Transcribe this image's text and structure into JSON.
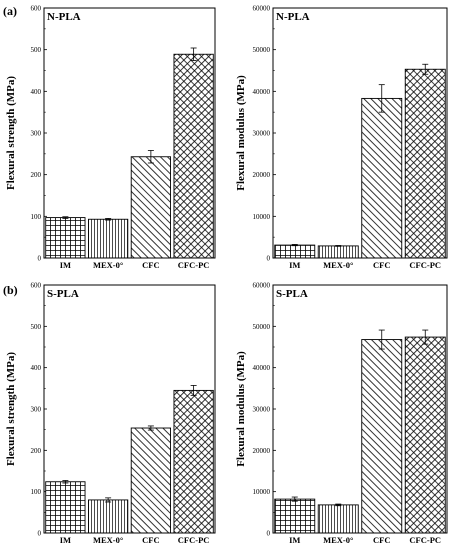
{
  "row_labels": [
    "(a)",
    "(b)"
  ],
  "chart_data": [
    {
      "type": "bar",
      "title": "N-PLA",
      "ylabel": "Flexural strength (MPa)",
      "categories": [
        "IM",
        "MEX-0°",
        "CFC",
        "CFC-PC"
      ],
      "values": [
        97,
        93,
        243,
        489
      ],
      "errors": [
        2,
        2,
        15,
        15
      ],
      "patterns": [
        "grid",
        "vertical",
        "diagonal",
        "crosshatch"
      ],
      "ylim": [
        0,
        600
      ],
      "yticks": [
        0,
        100,
        200,
        300,
        400,
        500,
        600
      ]
    },
    {
      "type": "bar",
      "title": "N-PLA",
      "ylabel": "Flexural modulus (MPa)",
      "categories": [
        "IM",
        "MEX-0°",
        "CFC",
        "CFC-PC"
      ],
      "values": [
        3100,
        2900,
        38300,
        45300
      ],
      "errors": [
        150,
        100,
        3300,
        1200
      ],
      "patterns": [
        "grid",
        "vertical",
        "diagonal",
        "crosshatch"
      ],
      "ylim": [
        0,
        60000
      ],
      "yticks": [
        0,
        10000,
        20000,
        30000,
        40000,
        50000,
        60000
      ]
    },
    {
      "type": "bar",
      "title": "S-PLA",
      "ylabel": "Flexural strength (MPa)",
      "categories": [
        "IM",
        "MEX-0°",
        "CFC",
        "CFC-PC"
      ],
      "values": [
        124,
        80,
        254,
        345
      ],
      "errors": [
        3,
        5,
        5,
        12
      ],
      "patterns": [
        "grid",
        "vertical",
        "diagonal",
        "crosshatch"
      ],
      "ylim": [
        0,
        600
      ],
      "yticks": [
        0,
        100,
        200,
        300,
        400,
        500,
        600
      ]
    },
    {
      "type": "bar",
      "title": "S-PLA",
      "ylabel": "Flexural modulus (MPa)",
      "categories": [
        "IM",
        "MEX-0°",
        "CFC",
        "CFC-PC"
      ],
      "values": [
        8200,
        6800,
        46800,
        47400
      ],
      "errors": [
        500,
        200,
        2300,
        1700
      ],
      "patterns": [
        "grid",
        "vertical",
        "diagonal",
        "crosshatch"
      ],
      "ylim": [
        0,
        60000
      ],
      "yticks": [
        0,
        10000,
        20000,
        30000,
        40000,
        50000,
        60000
      ]
    }
  ]
}
